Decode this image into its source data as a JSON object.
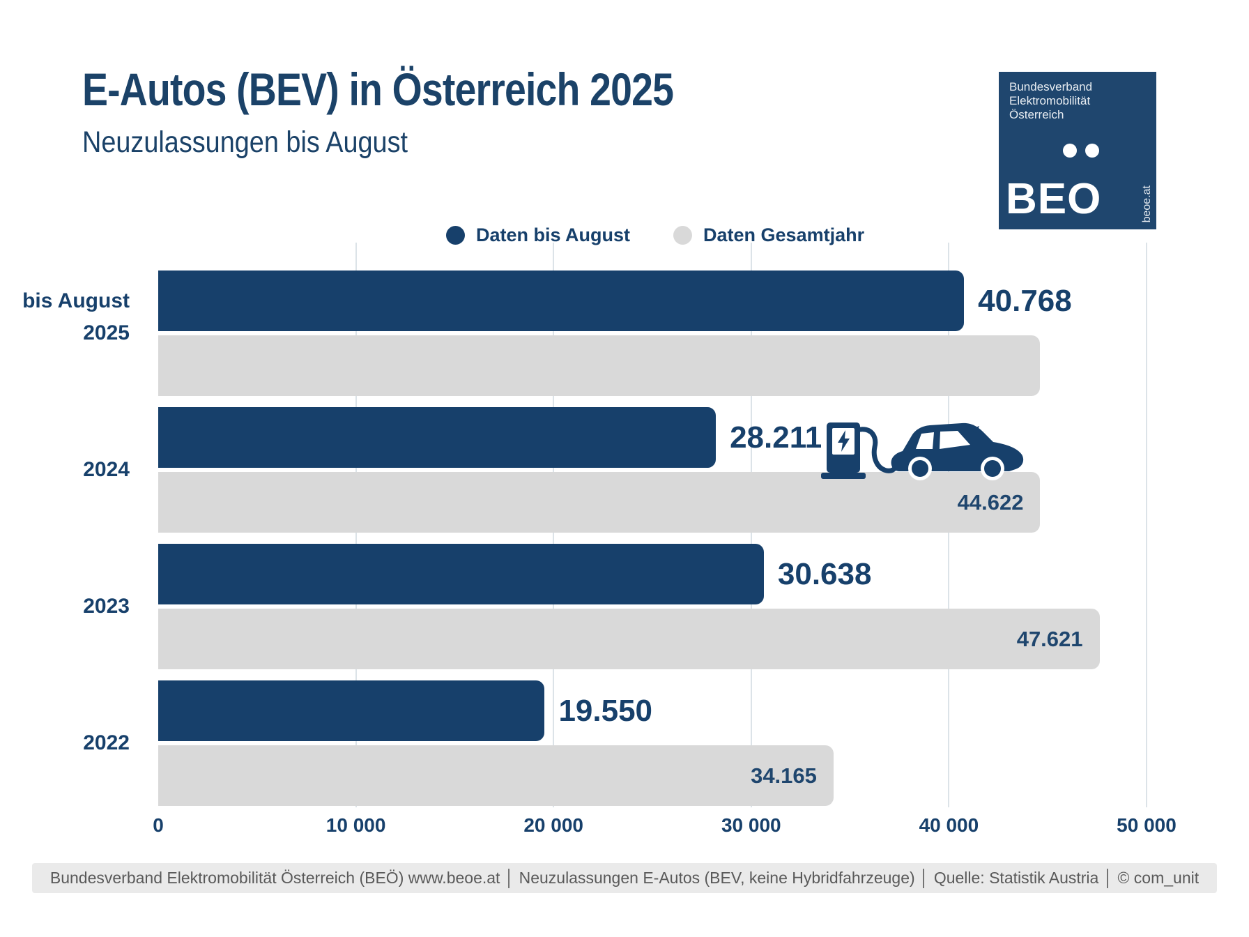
{
  "title": "E-Autos (BEV) in Österreich 2025",
  "subtitle": "Neuzulassungen bis August",
  "logo": {
    "org_lines": [
      "Bundesverband",
      "Elektromobilität",
      "Österreich"
    ],
    "acronym": "BEO",
    "website": "beoe.at",
    "background_color": "#1F466E"
  },
  "legend": [
    {
      "label": "Daten bis August",
      "color": "#17406B"
    },
    {
      "label": "Daten Gesamtjahr",
      "color": "#D9D9D9"
    }
  ],
  "chart_data": {
    "type": "bar",
    "orientation": "horizontal",
    "categories": [
      "bis August 2025",
      "2024",
      "2023",
      "2022"
    ],
    "category_display": [
      [
        "bis August",
        "2025"
      ],
      [
        "2024"
      ],
      [
        "2023"
      ],
      [
        "2022"
      ]
    ],
    "series": [
      {
        "name": "Daten bis August",
        "color": "#17406B",
        "values": [
          40768,
          28211,
          30638,
          19550
        ],
        "labels": [
          "40.768",
          "28.211",
          "30.638",
          "19.550"
        ],
        "label_position": "outside-right"
      },
      {
        "name": "Daten Gesamtjahr",
        "color": "#D9D9D9",
        "values": [
          44622,
          44622,
          47621,
          34165
        ],
        "labels": [
          "",
          "44.622",
          "47.621",
          "34.165"
        ],
        "label_position": "inside-right"
      }
    ],
    "xlim": [
      0,
      50000
    ],
    "x_ticks": [
      "0",
      "10 000",
      "20 000",
      "30 000",
      "40 000",
      "50 000"
    ],
    "grid": true,
    "legend_position": "top-center"
  },
  "footer": "Bundesverband Elektromobilität Österreich (BEÖ) www.beoe.at │ Neuzulassungen E-Autos (BEV, keine Hybridfahrzeuge) │ Quelle: Statistik Austria │ © com_unit",
  "colors": {
    "accent_navy": "#17406B",
    "bar_gray": "#D9D9D9",
    "gridline": "#DCE3E8",
    "footer_bg": "#EAEAEA",
    "footer_text": "#595959"
  }
}
